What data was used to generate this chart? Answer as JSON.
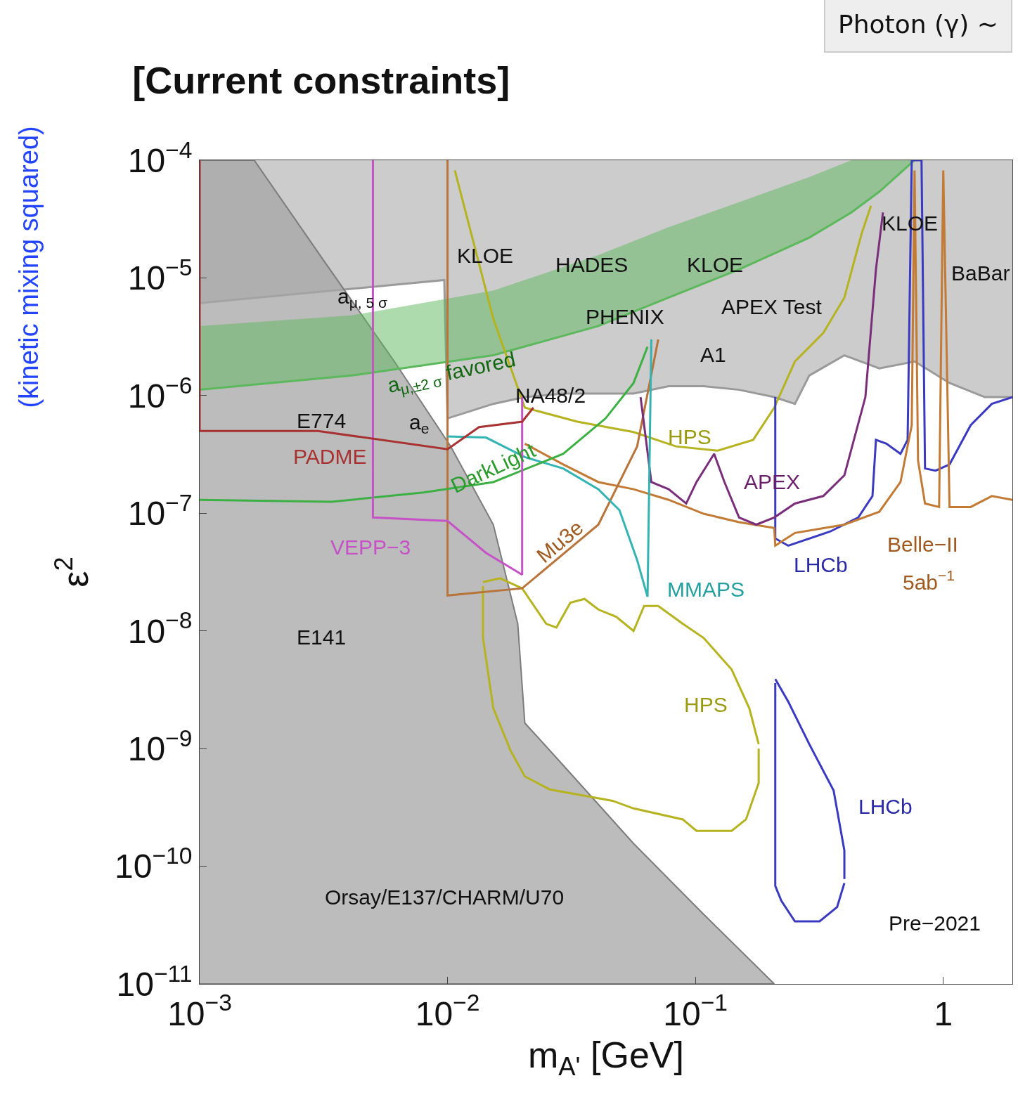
{
  "chart_data": {
    "type": "line",
    "title": "[Current constraints]",
    "xlabel": "m$_{A'}$ [GeV]",
    "ylabel": "ε$^{2}$",
    "log": "xy",
    "xlim": [
      0.001,
      1.9
    ],
    "ylim": [
      1e-11,
      0.0001
    ],
    "xticks": [
      {
        "value": 0.001,
        "label": "10$^{−3}$"
      },
      {
        "value": 0.01,
        "label": "10$^{−2}$"
      },
      {
        "value": 0.1,
        "label": "10$^{−1}$"
      },
      1
    ],
    "yticks": [
      {
        "value": 1e-11,
        "label": "10$^{−11}$"
      },
      {
        "value": 1e-10,
        "label": "10$^{−10}$"
      },
      {
        "value": 1e-09,
        "label": "10$^{−9}$"
      },
      {
        "value": 1e-08,
        "label": "10$^{−8}$"
      },
      {
        "value": 1e-07,
        "label": "10$^{−7}$"
      },
      {
        "value": 1e-06,
        "label": "10$^{−6}$"
      },
      {
        "value": 1e-05,
        "label": "10$^{−5}$"
      },
      {
        "value": 0.0001,
        "label": "10$^{−4}$"
      }
    ],
    "series": [
      {
        "color": "#9a9a9a",
        "x": [
          0.001,
          0.0097,
          0.01,
          0.0153,
          0.0205,
          0.0293,
          0.0406,
          0.0563,
          0.078,
          0.108,
          0.15,
          0.208,
          0.252,
          0.288,
          0.399,
          0.552,
          0.766,
          1.06,
          1.47,
          1.9
        ],
        "values": [
          6.1e-06,
          9.6e-06,
          6.4e-07,
          8.5e-07,
          9.7e-07,
          1.04e-06,
          1.04e-06,
          1.04e-06,
          1.2e-06,
          1.2e-06,
          1.12e-06,
          9.7e-07,
          8.5e-07,
          1.48e-06,
          2.2e-06,
          1.7e-06,
          1.95e-06,
          1.28e-06,
          9.7e-07,
          9.7e-07
        ],
        "upper": [
          0.0001,
          0.0001,
          0.0001,
          0.0001,
          0.0001,
          0.0001,
          0.0001,
          0.0001,
          0.0001,
          0.0001,
          0.0001,
          0.0001,
          0.0001,
          0.0001,
          0.0001,
          0.0001,
          0.0001,
          0.0001,
          0.0001,
          0.0001
        ],
        "lower": [
          6.1e-06,
          9.6e-06,
          6.4e-07,
          8.5e-07,
          9.7e-07,
          1.04e-06,
          1.04e-06,
          1.04e-06,
          1.2e-06,
          1.2e-06,
          1.12e-06,
          9.7e-07,
          8.5e-07,
          1.48e-06,
          2.2e-06,
          1.7e-06,
          1.95e-06,
          1.28e-06,
          9.7e-07,
          9.7e-07
        ]
      },
      {
        "type": "area",
        "color": "#a6a6a6",
        "x": [
          0.001,
          0.00166,
          0.0032,
          0.0061,
          0.0103,
          0.0153,
          0.0192,
          0.0205,
          0.0293,
          0.0563,
          0.108,
          0.208
        ],
        "values": [
          0.0001,
          0.0001,
          1.36e-05,
          1.95e-06,
          3.7e-07,
          8e-08,
          1.15e-08,
          1.65e-09,
          7.2e-10,
          1.56e-10,
          3.9e-11,
          1e-11
        ]
      },
      {
        "color": "#5cb85c",
        "x": [
          0.001,
          0.0041,
          0.0153,
          0.0406,
          0.078,
          0.15,
          0.288,
          0.426,
          0.552,
          0.766
        ],
        "values": [
          1.12e-06,
          1.48e-06,
          2.2e-06,
          3.9e-06,
          6.8e-06,
          1.18e-05,
          2.2e-05,
          3.6e-05,
          5.4e-05,
          0.0001
        ],
        "upper": [
          3.9e-06,
          4.8e-06,
          7.8e-06,
          1.56e-05,
          2.7e-05,
          4.4e-05,
          7.2e-05,
          0.0001,
          0.0001,
          0.0001
        ],
        "lower": [
          1.12e-06,
          1.48e-06,
          2.2e-06,
          3.9e-06,
          6.8e-06,
          1.18e-05,
          2.2e-05,
          3.6e-05,
          5.4e-05,
          0.0001
        ]
      },
      {
        "color": "#b5b31f",
        "x": [
          0.0107,
          0.0153,
          0.0205,
          0.0334,
          0.0563,
          0.0834,
          0.123,
          0.171,
          0.208,
          0.252,
          0.328,
          0.399,
          0.469,
          0.511
        ],
        "values": [
          8.2e-05,
          4.5e-06,
          7.9e-07,
          6e-07,
          4.9e-07,
          3.7e-07,
          3.4e-07,
          4.2e-07,
          7.9e-07,
          1.95e-06,
          3.4e-06,
          6.8e-06,
          2.4e-05,
          4.1e-05
        ]
      },
      {
        "color": "#b5b31f",
        "x": [
          0.0139,
          0.0163,
          0.02,
          0.025,
          0.0275,
          0.0313,
          0.0357,
          0.0406,
          0.0479,
          0.0563,
          0.0621,
          0.0708,
          0.0889,
          0.108,
          0.14,
          0.165,
          0.18
        ],
        "values": [
          2.6e-08,
          2.8e-08,
          2.3e-08,
          1.15e-08,
          1.07e-08,
          1.74e-08,
          1.87e-08,
          1.52e-08,
          1.32e-08,
          1e-08,
          1.63e-08,
          1.63e-08,
          1.15e-08,
          8.7e-09,
          4.7e-09,
          2.2e-09,
          1.09e-09
        ]
      },
      {
        "color": "#b5b31f",
        "x": [
          0.0139,
          0.0139,
          0.0153,
          0.018,
          0.0205,
          0.0258,
          0.0463,
          0.0563,
          0.0889,
          0.101,
          0.14,
          0.16,
          0.18,
          0.18
        ],
        "values": [
          2.4e-08,
          8.7e-09,
          2.2e-09,
          9.5e-10,
          5.8e-10,
          4.5e-10,
          3.6e-10,
          3.1e-10,
          2.5e-10,
          2e-10,
          2e-10,
          2.5e-10,
          5.1e-10,
          1e-09
        ]
      },
      {
        "color": "#3a3ac0",
        "x": [
          0.21,
          0.21,
          0.237,
          0.35,
          0.454,
          0.518,
          0.535,
          0.59,
          0.672,
          0.718,
          0.746,
          0.817,
          0.844,
          0.931,
          1.06,
          1.29,
          1.57,
          1.9
        ],
        "values": [
          9.7e-07,
          6.1e-08,
          5.3e-08,
          7e-08,
          9.2e-08,
          1.4e-07,
          4.2e-07,
          3.9e-07,
          3.2e-07,
          4.2e-07,
          0.0001,
          0.0001,
          2.4e-07,
          2.3e-07,
          2.6e-07,
          5.6e-07,
          8.5e-07,
          9.7e-07
        ]
      },
      {
        "color": "#3a3ac0",
        "x": [
          0.21,
          0.237,
          0.288,
          0.361,
          0.399,
          0.399
        ],
        "values": [
          3.9e-09,
          2.5e-09,
          1.09e-09,
          4.4e-10,
          1.36e-10,
          7.8e-11
        ]
      },
      {
        "color": "#3a3ac0",
        "x": [
          0.21,
          0.21,
          0.222,
          0.252,
          0.317,
          0.373,
          0.399
        ],
        "values": [
          3.6e-09,
          6.8e-11,
          5.1e-11,
          3.4e-11,
          3.4e-11,
          4.5e-11,
          7.2e-11
        ]
      },
      {
        "color": "#c27a35",
        "x": [
          0.0205,
          0.0293,
          0.0406,
          0.0563,
          0.078,
          0.108,
          0.15,
          0.208,
          0.21,
          0.252,
          0.399,
          0.552,
          0.672,
          0.746,
          0.766,
          0.791,
          0.844,
          0.962,
          1.0,
          1.06,
          1.29,
          1.57,
          1.9
        ],
        "values": [
          3.9e-07,
          2.6e-07,
          1.84e-07,
          1.6e-07,
          1.3e-07,
          9.9e-08,
          8.4e-08,
          7.5e-08,
          5.3e-08,
          6.8e-08,
          8e-08,
          1.03e-07,
          1.84e-07,
          5.6e-07,
          8.2e-05,
          2.8e-07,
          1.21e-07,
          1.13e-07,
          8.2e-05,
          1.13e-07,
          1.13e-07,
          1.4e-07,
          1.3e-07
        ]
      },
      {
        "color": "#b8743a",
        "x": [
          0.01,
          0.01,
          0.02,
          0.0406,
          0.0582,
          0.0708
        ],
        "values": [
          0.0001,
          2e-08,
          2.3e-08,
          8e-08,
          3.7e-07,
          3e-06
        ]
      },
      {
        "color": "#7a2e7a",
        "x": [
          0.0601,
          0.0664,
          0.078,
          0.0918,
          0.101,
          0.119,
          0.131,
          0.15,
          0.176,
          0.208,
          0.252,
          0.328,
          0.399,
          0.485,
          0.535,
          0.571
        ],
        "values": [
          9.7e-07,
          1.84e-07,
          1.6e-07,
          1.21e-07,
          1.84e-07,
          3.2e-07,
          1.84e-07,
          9.2e-08,
          8e-08,
          9.2e-08,
          1.21e-07,
          1.4e-07,
          2.1e-07,
          9.7e-07,
          1.18e-05,
          3.6e-05
        ]
      },
      {
        "color": "#34b3b3",
        "x": [
          0.01,
          0.0143,
          0.0205,
          0.0293,
          0.0406,
          0.0494,
          0.0582,
          0.0641,
          0.065,
          0.0664
        ],
        "values": [
          4.5e-07,
          4.4e-07,
          3e-07,
          2.4e-07,
          1.6e-07,
          1.06e-07,
          4e-08,
          1.95e-08,
          1.4e-07,
          3e-06
        ]
      },
      {
        "color": "#3cb043",
        "x": [
          0.001,
          0.0034,
          0.008,
          0.0153,
          0.0293,
          0.0434,
          0.0563,
          0.0641
        ],
        "values": [
          1.3e-07,
          1.25e-07,
          1.5e-07,
          1.84e-07,
          3.2e-07,
          6.4e-07,
          1.28e-06,
          2.6e-06
        ]
      },
      {
        "color": "#c653c6",
        "x": [
          0.005,
          0.005,
          0.01,
          0.0143,
          0.02,
          0.02
        ],
        "values": [
          0.0001,
          9.2e-08,
          8.6e-08,
          4.6e-08,
          3e-08,
          9.7e-07
        ]
      },
      {
        "color": "#a83232",
        "x": [
          0.001,
          0.001,
          0.003,
          0.01,
          0.0134,
          0.02,
          0.0222
        ],
        "values": [
          0.0001,
          5e-07,
          5e-07,
          3.5e-07,
          5.4e-07,
          6e-07,
          7.9e-07
        ]
      }
    ],
    "annotations": [
      "KLOE",
      "HADES",
      "KLOE",
      "PHENIX",
      "APEX Test",
      "A1",
      "KLOE",
      "BaBar",
      "a$_{μ, 5 σ}$",
      "a$_{μ,±2 σ}$ favored",
      "NA48/2",
      "E774",
      "a$_{e}$",
      "HPS",
      "PADME",
      "DarkLight",
      "APEX",
      "VEPP−3",
      "Mu3e",
      "MMAPS",
      "LHCb",
      "Belle−II",
      "5ab$^{−1}$",
      "E141",
      "HPS",
      "LHCb",
      "Orsay/E137/CHARM/U70",
      "Pre−2021",
      "(kinetic mixing squared)",
      "Photon (γ) ∼"
    ]
  }
}
